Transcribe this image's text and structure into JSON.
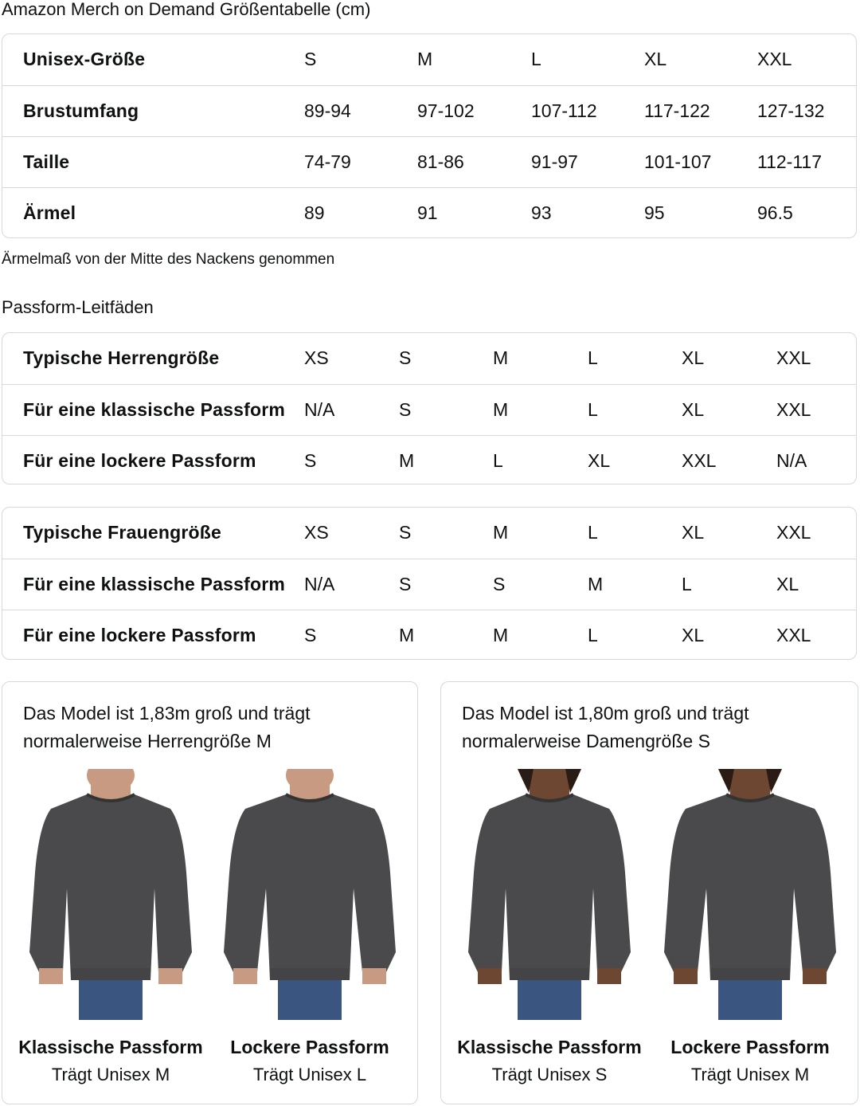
{
  "title": "Amazon Merch on Demand Größentabelle (cm)",
  "size_table": {
    "rows": [
      {
        "label": "Unisex-Größe",
        "values": [
          "S",
          "M",
          "L",
          "XL",
          "XXL"
        ]
      },
      {
        "label": "Brustumfang",
        "values": [
          "89-94",
          "97-102",
          "107-112",
          "117-122",
          "127-132"
        ]
      },
      {
        "label": "Taille",
        "values": [
          "74-79",
          "81-86",
          "91-97",
          "101-107",
          "112-117"
        ]
      },
      {
        "label": "Ärmel",
        "values": [
          "89",
          "91",
          "93",
          "95",
          "96.5"
        ]
      }
    ]
  },
  "sleeve_note": "Ärmelmaß von der Mitte des Nackens genommen",
  "fit_guide_title": "Passform-Leitfäden",
  "men_table": {
    "rows": [
      {
        "label": "Typische Herrengröße",
        "values": [
          "XS",
          "S",
          "M",
          "L",
          "XL",
          "XXL"
        ]
      },
      {
        "label": "Für eine klassische Passform",
        "values": [
          "N/A",
          "S",
          "M",
          "L",
          "XL",
          "XXL"
        ]
      },
      {
        "label": "Für eine lockere Passform",
        "values": [
          "S",
          "M",
          "L",
          "XL",
          "XXL",
          "N/A"
        ]
      }
    ]
  },
  "women_table": {
    "rows": [
      {
        "label": "Typische Frauengröße",
        "values": [
          "XS",
          "S",
          "M",
          "L",
          "XL",
          "XXL"
        ]
      },
      {
        "label": "Für eine klassische Passform",
        "values": [
          "N/A",
          "S",
          "S",
          "M",
          "L",
          "XL"
        ]
      },
      {
        "label": "Für eine lockere Passform",
        "values": [
          "S",
          "M",
          "M",
          "L",
          "XL",
          "XXL"
        ]
      }
    ]
  },
  "panels": [
    {
      "text": "Das Model ist 1,83m groß und trägt normalerweise Herrengröße M",
      "figures": [
        {
          "fit": "Klassische Passform",
          "wears": "Trägt Unisex M"
        },
        {
          "fit": "Lockere Passform",
          "wears": "Trägt Unisex L"
        }
      ]
    },
    {
      "text": "Das Model ist 1,80m groß und trägt normalerweise Damengröße S",
      "figures": [
        {
          "fit": "Klassische Passform",
          "wears": "Trägt Unisex S"
        },
        {
          "fit": "Lockere Passform",
          "wears": "Trägt Unisex M"
        }
      ]
    }
  ],
  "colors": {
    "border": "#d5d9d9",
    "sweatshirt": "#4a4a4c",
    "jeans": "#3a5680"
  }
}
